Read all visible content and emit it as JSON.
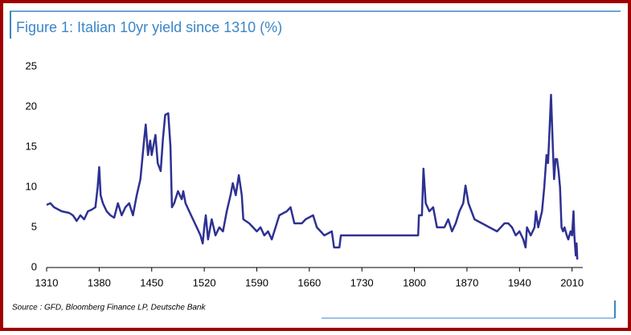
{
  "chart_data": {
    "type": "line",
    "title": "Figure 1: Italian 10yr yield since 1310 (%)",
    "source": "Source : GFD, Bloomberg Finance LP, Deutsche Bank",
    "x": [
      1310,
      1315,
      1320,
      1330,
      1340,
      1345,
      1350,
      1355,
      1360,
      1365,
      1370,
      1375,
      1378,
      1380,
      1382,
      1385,
      1390,
      1395,
      1400,
      1405,
      1410,
      1415,
      1420,
      1425,
      1430,
      1435,
      1440,
      1442,
      1445,
      1448,
      1450,
      1455,
      1458,
      1462,
      1465,
      1468,
      1472,
      1475,
      1477,
      1480,
      1485,
      1490,
      1492,
      1495,
      1500,
      1505,
      1510,
      1515,
      1518,
      1520,
      1522,
      1525,
      1530,
      1535,
      1540,
      1545,
      1550,
      1555,
      1558,
      1562,
      1566,
      1570,
      1572,
      1580,
      1590,
      1595,
      1600,
      1605,
      1610,
      1615,
      1620,
      1630,
      1635,
      1640,
      1650,
      1655,
      1665,
      1670,
      1680,
      1690,
      1693,
      1700,
      1702,
      1720,
      1800,
      1805,
      1806,
      1810,
      1812,
      1815,
      1820,
      1825,
      1830,
      1840,
      1845,
      1850,
      1855,
      1860,
      1865,
      1868,
      1872,
      1880,
      1890,
      1900,
      1910,
      1915,
      1920,
      1925,
      1930,
      1935,
      1940,
      1945,
      1948,
      1950,
      1955,
      1960,
      1962,
      1965,
      1970,
      1973,
      1976,
      1978,
      1980,
      1982,
      1984,
      1986,
      1988,
      1990,
      1992,
      1994,
      1996,
      1998,
      2000,
      2003,
      2005,
      2008,
      2010,
      2012,
      2013,
      2015,
      2016,
      2017
    ],
    "series": [
      {
        "name": "Italian 10yr yield",
        "color": "#2e3192",
        "values": [
          7.8,
          8,
          7.5,
          7,
          6.8,
          6.5,
          5.8,
          6.5,
          6,
          7,
          7.2,
          7.5,
          10,
          12.5,
          9,
          8,
          7,
          6.5,
          6.2,
          8,
          6.5,
          7.5,
          8,
          6.5,
          9,
          11,
          16,
          17.8,
          14,
          15.8,
          14,
          16.5,
          13,
          12,
          16,
          19,
          19.2,
          15,
          7.5,
          8,
          9.5,
          8.5,
          9.5,
          8,
          7,
          6,
          5,
          4,
          3,
          5,
          6.5,
          3.5,
          6,
          4,
          5,
          4.5,
          7,
          9,
          10.5,
          9,
          11.5,
          9,
          6,
          5.5,
          4.5,
          5,
          4,
          4.5,
          3.5,
          5,
          6.5,
          7,
          7.5,
          5.5,
          5.5,
          6,
          6.5,
          5,
          4,
          4.5,
          2.5,
          2.5,
          4,
          4,
          4,
          4,
          6.5,
          6.5,
          12.3,
          8,
          7,
          7.5,
          5,
          5,
          6,
          4.5,
          5.5,
          7,
          8,
          10.2,
          8,
          6,
          5.5,
          5,
          4.5,
          5,
          5.5,
          5.5,
          5,
          4,
          4.5,
          3.5,
          2.5,
          5,
          4,
          5,
          7,
          5,
          7,
          10,
          14,
          13,
          17,
          21.5,
          16,
          11,
          13.5,
          13.5,
          12,
          10,
          5,
          4.5,
          5,
          4,
          3.5,
          4.5,
          4,
          7,
          4,
          1.5,
          3,
          1
        ]
      }
    ],
    "xlim": [
      1310,
      2020
    ],
    "xticks": [
      1310,
      1380,
      1450,
      1520,
      1590,
      1660,
      1730,
      1800,
      1870,
      1940,
      2010
    ],
    "ylim": [
      0,
      25
    ],
    "yticks": [
      0,
      5,
      10,
      15,
      20,
      25
    ]
  }
}
